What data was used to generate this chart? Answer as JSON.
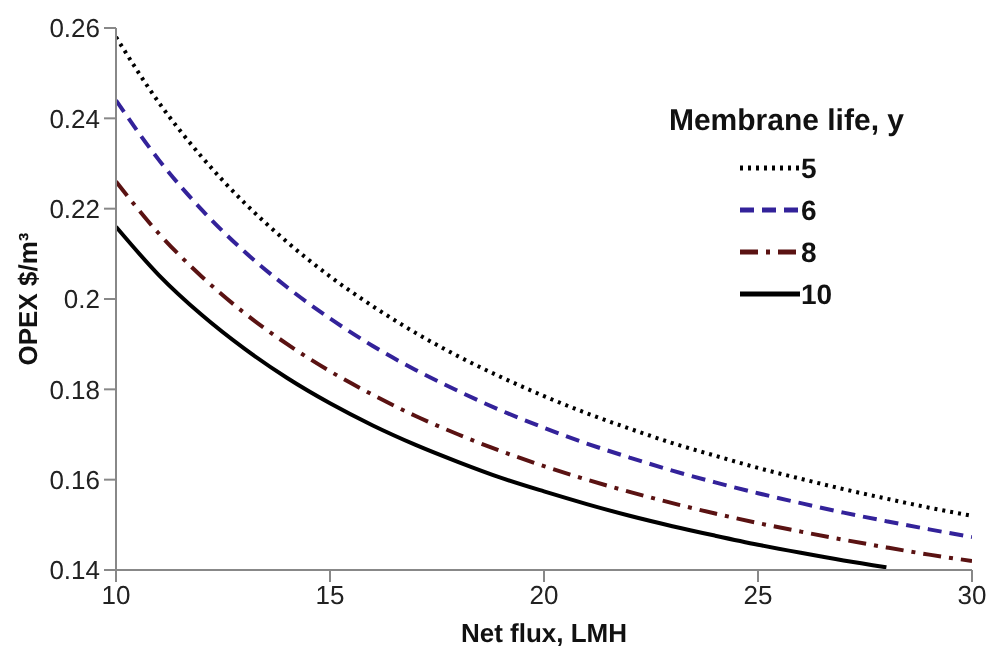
{
  "chart_data": {
    "type": "line",
    "xlabel": "Net flux, LMH",
    "ylabel": "OPEX $/m³",
    "legend_title": "Membrane life, y",
    "x": [
      10,
      11,
      12,
      13,
      14,
      15,
      16,
      17,
      18,
      19,
      20,
      21,
      22,
      23,
      24,
      25,
      26,
      27,
      28,
      29,
      30
    ],
    "series": [
      {
        "name": "5",
        "color": "#000000",
        "line_style": "dotted",
        "values": [
          0.258,
          0.2435,
          0.2315,
          0.2213,
          0.2126,
          0.205,
          0.1984,
          0.1925,
          0.1873,
          0.1827,
          0.1785,
          0.1747,
          0.1713,
          0.1681,
          0.1653,
          0.1626,
          0.1602,
          0.1579,
          0.1558,
          0.1538,
          0.152
        ]
      },
      {
        "name": "6",
        "color": "#33229a",
        "line_style": "dashed",
        "values": [
          0.244,
          0.2308,
          0.2198,
          0.2105,
          0.2026,
          0.1957,
          0.1896,
          0.1843,
          0.1796,
          0.1753,
          0.1715,
          0.168,
          0.1649,
          0.162,
          0.1594,
          0.157,
          0.1548,
          0.1527,
          0.1508,
          0.149,
          0.1473
        ]
      },
      {
        "name": "8",
        "color": "#5a1212",
        "line_style": "dashdot",
        "values": [
          0.226,
          0.2145,
          0.205,
          0.1969,
          0.19,
          0.184,
          0.1788,
          0.1741,
          0.17,
          0.1663,
          0.163,
          0.16,
          0.1573,
          0.1548,
          0.1525,
          0.1504,
          0.1485,
          0.1467,
          0.145,
          0.1434,
          0.142
        ]
      },
      {
        "name": "10",
        "color": "#000000",
        "line_style": "solid",
        "values": [
          0.216,
          0.2053,
          0.1965,
          0.189,
          0.1825,
          0.1769,
          0.172,
          0.1677,
          0.1639,
          0.1604,
          0.1574,
          0.1546,
          0.152,
          0.1497,
          0.1476,
          0.1456,
          0.1438,
          0.1421,
          0.1406,
          null,
          null
        ]
      }
    ],
    "xlim": [
      10,
      30
    ],
    "xticks": [
      10,
      15,
      20,
      25,
      30
    ],
    "ylim": [
      0.14,
      0.26
    ],
    "yticks": [
      0.14,
      0.16,
      0.18,
      0.2,
      0.22,
      0.24,
      0.26
    ],
    "grid": false,
    "legend": "top right",
    "marker": "none"
  }
}
